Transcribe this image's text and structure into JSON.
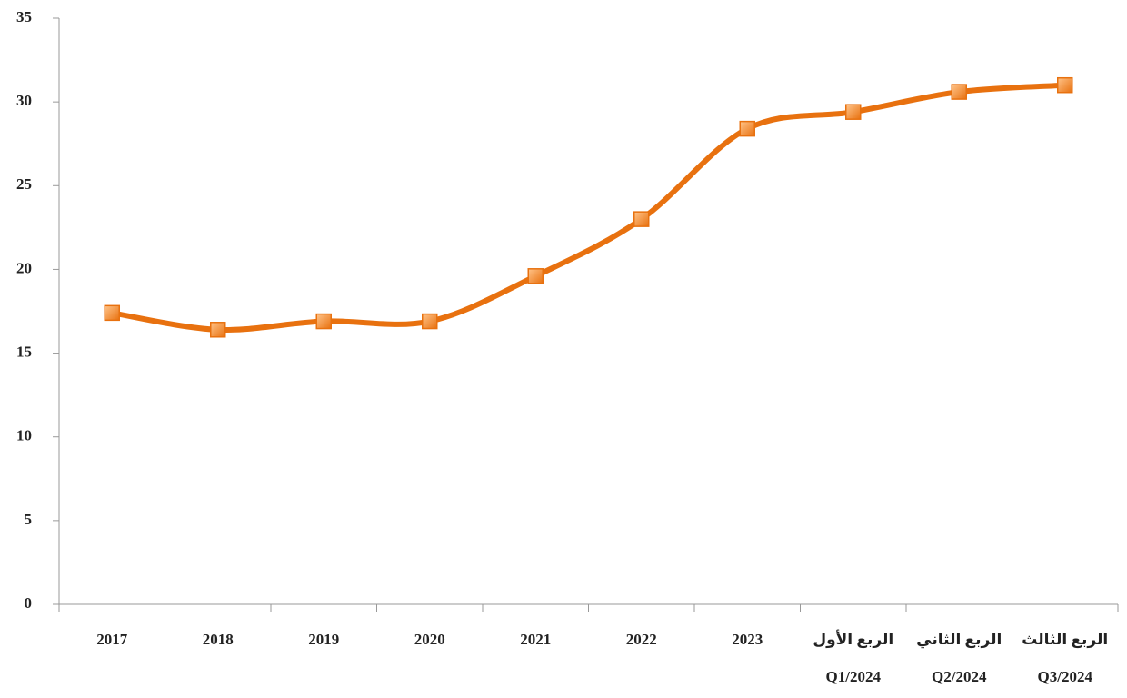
{
  "chart_data": {
    "type": "line",
    "categories": [
      "2017",
      "2018",
      "2019",
      "2020",
      "2021",
      "2022",
      "2023",
      "الربع الأول\nQ1/2024",
      "الربع الثاني\nQ2/2024",
      "الربع الثالث\nQ3/2024"
    ],
    "values": [
      17.4,
      16.4,
      16.9,
      16.9,
      19.6,
      23.0,
      28.4,
      29.4,
      30.6,
      31.0
    ],
    "color": "#e8710f",
    "ylim": [
      0,
      35
    ],
    "yticks": [
      0,
      5,
      10,
      15,
      20,
      25,
      30,
      35
    ],
    "grid": false,
    "smooth": true
  }
}
